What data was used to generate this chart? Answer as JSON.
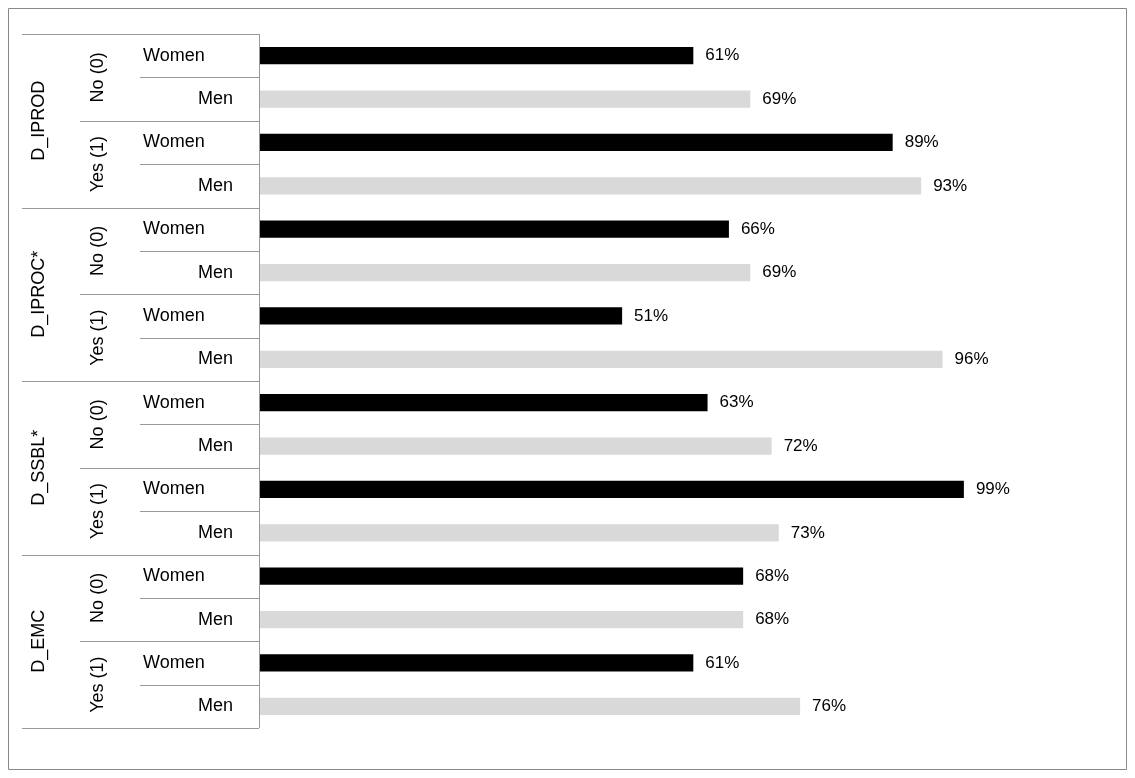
{
  "chart_data": {
    "type": "bar",
    "orientation": "horizontal",
    "categories": [
      "Women",
      "Men",
      "Women",
      "Men",
      "Women",
      "Men",
      "Women",
      "Men",
      "Women",
      "Men",
      "Women",
      "Men",
      "Women",
      "Men",
      "Women",
      "Men"
    ],
    "values": [
      61,
      69,
      89,
      93,
      66,
      69,
      51,
      96,
      63,
      72,
      99,
      73,
      68,
      68,
      61,
      76
    ],
    "colors": [
      "#000000",
      "#d9d9d9",
      "#000000",
      "#d9d9d9",
      "#000000",
      "#d9d9d9",
      "#000000",
      "#d9d9d9",
      "#000000",
      "#d9d9d9",
      "#000000",
      "#d9d9d9",
      "#000000",
      "#d9d9d9",
      "#000000",
      "#d9d9d9"
    ],
    "value_labels": [
      "61%",
      "69%",
      "89%",
      "93%",
      "66%",
      "69%",
      "51%",
      "96%",
      "63%",
      "72%",
      "99%",
      "73%",
      "68%",
      "68%",
      "61%",
      "76%"
    ],
    "annotations": [
      "D_IPROD",
      "No (0)",
      "Yes (1)",
      "D_IPROC*",
      "No (0)",
      "Yes (1)",
      "D_SSBL*",
      "No (0)",
      "Yes (1)",
      "D_EMC",
      "No (0)",
      "Yes (1)"
    ],
    "legend": false
  }
}
